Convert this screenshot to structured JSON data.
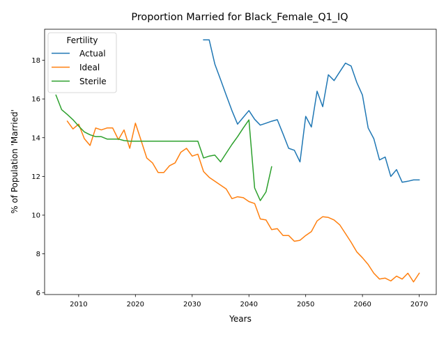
{
  "chart_data": {
    "type": "line",
    "title": "Proportion Married for Black_Female_Q1_IQ",
    "xlabel": "Years",
    "ylabel": "% of Population 'Married'",
    "xlim": [
      2004,
      2073
    ],
    "ylim": [
      5.9,
      19.6
    ],
    "xticks": [
      2010,
      2020,
      2030,
      2040,
      2050,
      2060,
      2070
    ],
    "yticks": [
      6,
      8,
      10,
      12,
      14,
      16,
      18
    ],
    "grid": false,
    "legend": {
      "title": "Fertility",
      "position": "upper left"
    },
    "series": [
      {
        "name": "Actual",
        "color": "#1f77b4",
        "x": [
          2032,
          2033,
          2034,
          2035,
          2036,
          2037,
          2038,
          2039,
          2040,
          2041,
          2042,
          2043,
          2044,
          2045,
          2046,
          2047,
          2048,
          2049,
          2050,
          2051,
          2052,
          2053,
          2054,
          2055,
          2056,
          2057,
          2058,
          2059,
          2060,
          2061,
          2062,
          2063,
          2064,
          2065,
          2066,
          2067,
          2068,
          2069,
          2070
        ],
        "y": [
          19.05,
          19.05,
          17.8,
          17.0,
          16.2,
          15.4,
          14.7,
          15.05,
          15.4,
          14.95,
          14.65,
          14.75,
          14.85,
          14.93,
          14.2,
          13.45,
          13.35,
          12.75,
          15.1,
          14.55,
          16.4,
          15.6,
          17.25,
          16.95,
          17.4,
          17.85,
          17.7,
          16.85,
          16.2,
          14.5,
          13.95,
          12.85,
          13.0,
          12.0,
          12.35,
          11.7,
          11.75,
          11.82,
          11.82
        ]
      },
      {
        "name": "Ideal",
        "color": "#ff7f0e",
        "x": [
          2008,
          2009,
          2010,
          2011,
          2012,
          2013,
          2014,
          2015,
          2016,
          2017,
          2018,
          2019,
          2020,
          2021,
          2022,
          2023,
          2024,
          2025,
          2026,
          2027,
          2028,
          2029,
          2030,
          2031,
          2032,
          2033,
          2034,
          2035,
          2036,
          2037,
          2038,
          2039,
          2040,
          2041,
          2042,
          2043,
          2044,
          2045,
          2046,
          2047,
          2048,
          2049,
          2050,
          2051,
          2052,
          2053,
          2054,
          2055,
          2056,
          2057,
          2058,
          2059,
          2060,
          2061,
          2062,
          2063,
          2064,
          2065,
          2066,
          2067,
          2068,
          2069,
          2070
        ],
        "y": [
          14.85,
          14.45,
          14.7,
          13.95,
          13.6,
          14.5,
          14.4,
          14.5,
          14.5,
          13.9,
          14.4,
          13.45,
          14.75,
          13.85,
          12.95,
          12.7,
          12.2,
          12.2,
          12.55,
          12.7,
          13.25,
          13.45,
          13.05,
          13.15,
          12.25,
          11.95,
          11.75,
          11.55,
          11.35,
          10.85,
          10.95,
          10.9,
          10.7,
          10.6,
          9.8,
          9.75,
          9.25,
          9.3,
          8.95,
          8.95,
          8.65,
          8.7,
          8.95,
          9.15,
          9.7,
          9.92,
          9.88,
          9.75,
          9.5,
          9.05,
          8.6,
          8.1,
          7.8,
          7.45,
          7.0,
          6.7,
          6.75,
          6.6,
          6.85,
          6.7,
          7.0,
          6.55,
          7.0
        ]
      },
      {
        "name": "Sterile",
        "color": "#2ca02c",
        "x": [
          2006,
          2007,
          2008,
          2009,
          2010,
          2011,
          2012,
          2013,
          2014,
          2015,
          2016,
          2017,
          2018,
          2019,
          2020,
          2021,
          2022,
          2023,
          2024,
          2025,
          2026,
          2027,
          2028,
          2029,
          2030,
          2031,
          2032,
          2033,
          2034,
          2035,
          2036,
          2037,
          2038,
          2039,
          2040,
          2041,
          2042,
          2043,
          2044
        ],
        "y": [
          16.2,
          15.45,
          15.2,
          14.93,
          14.6,
          14.3,
          14.15,
          14.05,
          14.05,
          13.93,
          13.93,
          13.93,
          13.85,
          13.82,
          13.82,
          13.82,
          13.82,
          13.82,
          13.82,
          13.82,
          13.82,
          13.82,
          13.82,
          13.82,
          13.82,
          13.82,
          12.95,
          13.05,
          13.1,
          12.75,
          13.2,
          13.65,
          14.05,
          14.5,
          14.92,
          11.4,
          10.75,
          11.2,
          12.5
        ]
      }
    ]
  }
}
